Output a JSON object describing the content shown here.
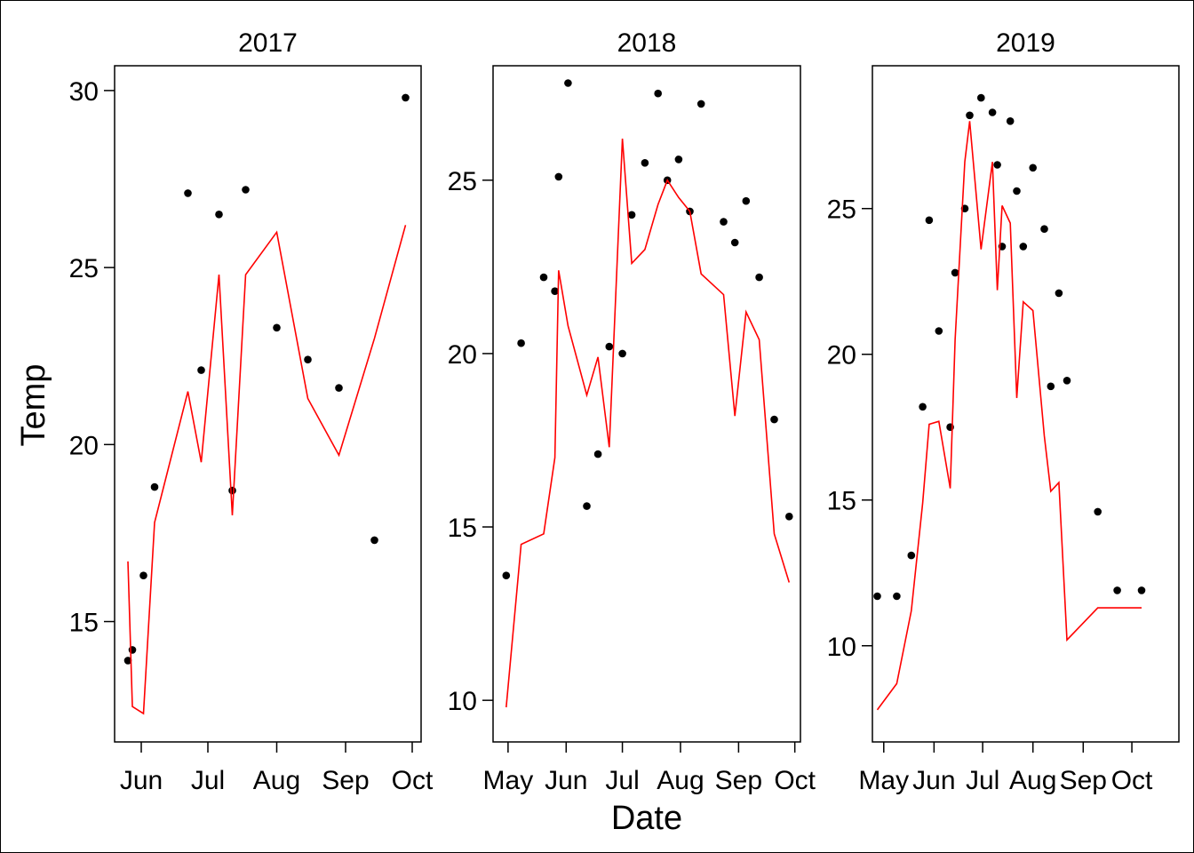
{
  "figure": {
    "xlabel": "Date",
    "ylabel": "Temp",
    "line_color": "#ff0000",
    "point_color": "#000000"
  },
  "chart_data": [
    {
      "type": "scatter",
      "title": "2017",
      "xlabel": "Date",
      "ylabel": "Temp",
      "xlim": [
        "2017-05-20",
        "2017-10-05"
      ],
      "ylim": [
        11.6,
        30.7
      ],
      "x_ticks": [
        {
          "date": "2017-06-01",
          "label": "Jun"
        },
        {
          "date": "2017-07-01",
          "label": "Jul"
        },
        {
          "date": "2017-08-01",
          "label": "Aug"
        },
        {
          "date": "2017-09-01",
          "label": "Sep"
        },
        {
          "date": "2017-10-01",
          "label": "Oct"
        }
      ],
      "y_ticks": [
        15,
        20,
        25,
        30
      ],
      "grid": false,
      "series": [
        {
          "type": "scatter",
          "x": [
            "2017-05-26",
            "2017-05-28",
            "2017-06-02",
            "2017-06-07",
            "2017-06-22",
            "2017-06-28",
            "2017-07-06",
            "2017-07-12",
            "2017-07-18",
            "2017-08-01",
            "2017-08-15",
            "2017-08-29",
            "2017-09-14",
            "2017-09-28"
          ],
          "y": [
            13.9,
            14.2,
            16.3,
            18.8,
            27.1,
            22.1,
            26.5,
            18.7,
            27.2,
            23.3,
            22.4,
            21.6,
            17.3,
            29.8
          ]
        },
        {
          "type": "line",
          "x": [
            "2017-05-26",
            "2017-05-28",
            "2017-06-02",
            "2017-06-07",
            "2017-06-22",
            "2017-06-28",
            "2017-07-06",
            "2017-07-12",
            "2017-07-18",
            "2017-08-01",
            "2017-08-15",
            "2017-08-29",
            "2017-09-14",
            "2017-09-28"
          ],
          "y": [
            16.7,
            12.6,
            12.4,
            17.8,
            21.5,
            19.5,
            24.8,
            18.0,
            24.8,
            26.0,
            21.3,
            19.7,
            23.0,
            26.2
          ]
        }
      ]
    },
    {
      "type": "scatter",
      "title": "2018",
      "xlabel": "Date",
      "ylabel": "Temp",
      "xlim": [
        "2018-04-23",
        "2018-10-04"
      ],
      "ylim": [
        8.8,
        28.3
      ],
      "x_ticks": [
        {
          "date": "2018-05-01",
          "label": "May"
        },
        {
          "date": "2018-06-01",
          "label": "Jun"
        },
        {
          "date": "2018-07-01",
          "label": "Jul"
        },
        {
          "date": "2018-08-01",
          "label": "Aug"
        },
        {
          "date": "2018-09-01",
          "label": "Sep"
        },
        {
          "date": "2018-10-01",
          "label": "Oct"
        }
      ],
      "y_ticks": [
        10,
        15,
        20,
        25
      ],
      "grid": false,
      "series": [
        {
          "type": "scatter",
          "x": [
            "2018-04-30",
            "2018-05-08",
            "2018-05-20",
            "2018-05-26",
            "2018-05-28",
            "2018-06-02",
            "2018-06-12",
            "2018-06-18",
            "2018-06-24",
            "2018-07-01",
            "2018-07-06",
            "2018-07-13",
            "2018-07-20",
            "2018-07-25",
            "2018-07-31",
            "2018-08-06",
            "2018-08-12",
            "2018-08-24",
            "2018-08-30",
            "2018-09-05",
            "2018-09-12",
            "2018-09-20",
            "2018-09-28"
          ],
          "y": [
            13.6,
            20.3,
            22.2,
            21.8,
            25.1,
            27.8,
            15.6,
            17.1,
            20.2,
            20.0,
            24.0,
            25.5,
            27.5,
            25.0,
            25.6,
            24.1,
            27.2,
            23.8,
            23.2,
            24.4,
            22.2,
            18.1,
            15.3
          ]
        },
        {
          "type": "line",
          "x": [
            "2018-04-30",
            "2018-05-08",
            "2018-05-20",
            "2018-05-26",
            "2018-05-28",
            "2018-06-02",
            "2018-06-12",
            "2018-06-18",
            "2018-06-24",
            "2018-07-01",
            "2018-07-06",
            "2018-07-13",
            "2018-07-20",
            "2018-07-25",
            "2018-07-31",
            "2018-08-06",
            "2018-08-12",
            "2018-08-24",
            "2018-08-30",
            "2018-09-05",
            "2018-09-12",
            "2018-09-20",
            "2018-09-28"
          ],
          "y": [
            9.8,
            14.5,
            14.8,
            17.0,
            22.4,
            20.8,
            18.8,
            19.9,
            17.3,
            26.2,
            22.6,
            23.0,
            24.3,
            25.0,
            24.5,
            24.1,
            22.3,
            21.7,
            18.2,
            21.2,
            20.4,
            14.8,
            13.4
          ]
        }
      ]
    },
    {
      "type": "scatter",
      "title": "2019",
      "xlabel": "Date",
      "ylabel": "Temp",
      "xlim": [
        "2019-04-24",
        "2019-10-30"
      ],
      "ylim": [
        6.7,
        29.9
      ],
      "x_ticks": [
        {
          "date": "2019-05-01",
          "label": "May"
        },
        {
          "date": "2019-06-01",
          "label": "Jun"
        },
        {
          "date": "2019-07-01",
          "label": "Jul"
        },
        {
          "date": "2019-08-01",
          "label": "Aug"
        },
        {
          "date": "2019-09-01",
          "label": "Sep"
        },
        {
          "date": "2019-10-01",
          "label": "Oct"
        }
      ],
      "y_ticks": [
        10,
        15,
        20,
        25
      ],
      "grid": false,
      "series": [
        {
          "type": "scatter",
          "x": [
            "2019-04-27",
            "2019-05-09",
            "2019-05-18",
            "2019-05-25",
            "2019-05-29",
            "2019-06-04",
            "2019-06-11",
            "2019-06-14",
            "2019-06-20",
            "2019-06-23",
            "2019-06-30",
            "2019-07-07",
            "2019-07-10",
            "2019-07-13",
            "2019-07-18",
            "2019-07-22",
            "2019-07-26",
            "2019-08-01",
            "2019-08-08",
            "2019-08-12",
            "2019-08-17",
            "2019-08-22",
            "2019-09-10",
            "2019-09-22",
            "2019-10-07"
          ],
          "y": [
            11.7,
            11.7,
            13.1,
            18.2,
            24.6,
            20.8,
            17.5,
            22.8,
            25.0,
            28.2,
            28.8,
            28.3,
            26.5,
            23.7,
            28.0,
            25.6,
            23.7,
            26.4,
            24.3,
            18.9,
            22.1,
            19.1,
            14.6,
            11.9,
            11.9
          ]
        },
        {
          "type": "line",
          "x": [
            "2019-04-27",
            "2019-05-09",
            "2019-05-18",
            "2019-05-25",
            "2019-05-29",
            "2019-06-04",
            "2019-06-11",
            "2019-06-14",
            "2019-06-20",
            "2019-06-23",
            "2019-06-30",
            "2019-07-07",
            "2019-07-10",
            "2019-07-13",
            "2019-07-18",
            "2019-07-22",
            "2019-07-26",
            "2019-08-01",
            "2019-08-08",
            "2019-08-12",
            "2019-08-17",
            "2019-08-22",
            "2019-09-10",
            "2019-09-22",
            "2019-10-07"
          ],
          "y": [
            7.8,
            8.7,
            11.2,
            14.9,
            17.6,
            17.7,
            15.4,
            20.5,
            26.6,
            28.0,
            23.6,
            26.6,
            22.2,
            25.1,
            24.5,
            18.5,
            21.8,
            21.5,
            17.2,
            15.3,
            15.6,
            10.2,
            11.3,
            11.3,
            11.3
          ]
        }
      ]
    }
  ]
}
